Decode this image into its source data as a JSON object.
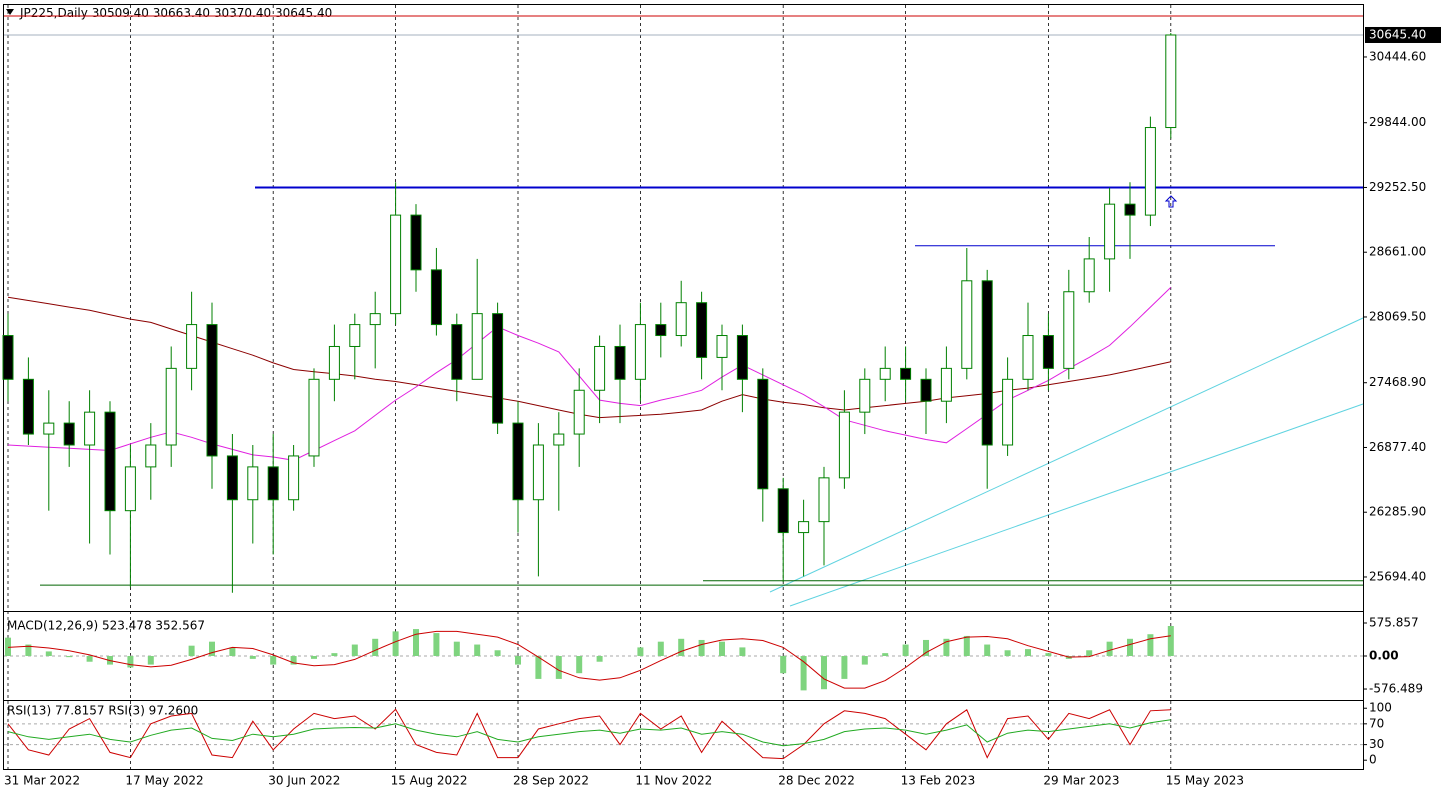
{
  "chart_data": [
    {
      "type": "candlestick",
      "title": "JP225,Daily",
      "header_values": [
        "30509.40",
        "30663.40",
        "30370.40",
        "30645.40"
      ],
      "categories": [
        "31 Mar 2022",
        null,
        null,
        null,
        null,
        null,
        "17 May 2022",
        null,
        null,
        null,
        null,
        null,
        null,
        "30 Jun 2022",
        null,
        null,
        null,
        null,
        null,
        "15 Aug 2022",
        null,
        null,
        null,
        null,
        null,
        "28 Sep 2022",
        null,
        null,
        null,
        null,
        null,
        "11 Nov 2022",
        null,
        null,
        null,
        null,
        null,
        null,
        "28 Dec 2022",
        null,
        null,
        null,
        null,
        null,
        "13 Feb 2023",
        null,
        null,
        null,
        null,
        null,
        null,
        "29 Mar 2023",
        null,
        null,
        null,
        null,
        null,
        "15 May 2023"
      ],
      "open": [
        27900,
        27500,
        27000,
        27100,
        26900,
        27200,
        26300,
        26700,
        26900,
        27600,
        28000,
        26800,
        26400,
        26700,
        26400,
        26800,
        27500,
        27800,
        28000,
        28100,
        29000,
        28500,
        28000,
        27500,
        28100,
        27100,
        26400,
        26900,
        27000,
        27400,
        27800,
        27500,
        28000,
        27900,
        28200,
        27700,
        27900,
        27500,
        26500,
        26100,
        26200,
        26600,
        27200,
        27500,
        27600,
        27500,
        27300,
        27600,
        28400,
        26900,
        27500,
        27900,
        27600,
        28300,
        28600,
        29100,
        29000,
        29800
      ],
      "high": [
        28100,
        27700,
        27400,
        27300,
        27400,
        27300,
        26900,
        27100,
        27800,
        28300,
        28200,
        27000,
        26900,
        27000,
        26900,
        27600,
        28000,
        28100,
        28300,
        29300,
        29100,
        28700,
        28100,
        28600,
        28200,
        27300,
        27100,
        27200,
        27600,
        27900,
        28000,
        28200,
        28200,
        28400,
        28300,
        28000,
        28000,
        27600,
        26600,
        26400,
        26700,
        27400,
        27600,
        27800,
        27800,
        27600,
        27800,
        28700,
        28500,
        27700,
        28200,
        28100,
        28500,
        28800,
        29250,
        29300,
        29900,
        30663.4
      ],
      "low": [
        27300,
        26900,
        26300,
        26700,
        26000,
        25900,
        25600,
        26400,
        26700,
        27400,
        26500,
        25550,
        26000,
        25900,
        26300,
        26700,
        27300,
        27500,
        27600,
        28000,
        28300,
        27900,
        27300,
        27500,
        27000,
        26100,
        25700,
        26300,
        26700,
        27100,
        27100,
        27300,
        27700,
        27800,
        27500,
        27400,
        27200,
        26200,
        25650,
        25700,
        25800,
        26500,
        27000,
        27300,
        27300,
        27000,
        27100,
        27500,
        26500,
        26800,
        27400,
        27400,
        27500,
        28200,
        28300,
        28600,
        28900,
        29700
      ],
      "close": [
        27500,
        27000,
        27100,
        26900,
        27200,
        26300,
        26700,
        26900,
        27600,
        28000,
        26800,
        26400,
        26700,
        26400,
        26800,
        27500,
        27800,
        28000,
        28100,
        29000,
        28500,
        28000,
        27500,
        28100,
        27100,
        26400,
        26900,
        27000,
        27400,
        27800,
        27500,
        28000,
        27900,
        28200,
        27700,
        27900,
        27500,
        26500,
        26100,
        26200,
        26600,
        27200,
        27500,
        27600,
        27500,
        27300,
        27600,
        28400,
        26900,
        27500,
        27900,
        27600,
        28300,
        28600,
        29100,
        29000,
        29800,
        30645.4
      ],
      "up_color": "#ffffff",
      "down_color": "#000000",
      "wick_color": "#008000",
      "ma_lines": [
        {
          "color": "#8b0000",
          "values": [
            28250,
            28220,
            28190,
            28160,
            28130,
            28090,
            28050,
            28020,
            27960,
            27900,
            27840,
            27780,
            27720,
            27650,
            27590,
            27570,
            27550,
            27530,
            27500,
            27480,
            27450,
            27420,
            27390,
            27360,
            27330,
            27300,
            27260,
            27220,
            27180,
            27150,
            27160,
            27170,
            27180,
            27200,
            27220,
            27300,
            27360,
            27320,
            27290,
            27270,
            27240,
            27220,
            27240,
            27260,
            27280,
            27300,
            27330,
            27350,
            27370,
            27400,
            27420,
            27450,
            27480,
            27510,
            27540,
            27580,
            27620,
            27660
          ]
        },
        {
          "color": "#e020e0",
          "values": [
            26900,
            26890,
            26880,
            26870,
            26860,
            26850,
            26910,
            26970,
            27020,
            26970,
            26910,
            26860,
            26810,
            26790,
            26760,
            26850,
            26940,
            27030,
            27170,
            27310,
            27430,
            27560,
            27680,
            27830,
            27980,
            27900,
            27830,
            27750,
            27530,
            27310,
            27280,
            27260,
            27310,
            27350,
            27400,
            27520,
            27630,
            27540,
            27450,
            27360,
            27250,
            27130,
            27080,
            27030,
            26990,
            26950,
            26920,
            27050,
            27180,
            27310,
            27400,
            27490,
            27600,
            27700,
            27810,
            27980,
            28160,
            28340
          ]
        }
      ],
      "levels": [
        {
          "value": 30819,
          "color": "#cc0000"
        },
        {
          "value": 29252.5,
          "color": "#0000cd"
        },
        {
          "value": 28720,
          "color": "#0000cd"
        },
        {
          "value": 25620,
          "color": "#006400"
        },
        {
          "value": 25660,
          "color": "#006400"
        }
      ],
      "last_price": {
        "value": 30645.4,
        "label": "30645.40"
      },
      "ylim": [
        25411,
        30965
      ],
      "yticks": [
        {
          "value": 25694.4,
          "label": "25694.40"
        },
        {
          "value": 26285.9,
          "label": "26285.90"
        },
        {
          "value": 26877.4,
          "label": "26877.40"
        },
        {
          "value": 27468.9,
          "label": "27468.90"
        },
        {
          "value": 28069.5,
          "label": "28069.50"
        },
        {
          "value": 28661,
          "label": "28661.00"
        },
        {
          "value": 29252.5,
          "label": "29252.50"
        },
        {
          "value": 29844,
          "label": "29844.00"
        },
        {
          "value": 30444.6,
          "label": "30444.60"
        }
      ]
    },
    {
      "type": "macd",
      "title": "MACD(12,26,9) 523.478 352.567",
      "histogram": [
        320,
        200,
        80,
        -20,
        -100,
        -150,
        -200,
        -150,
        0,
        180,
        250,
        150,
        -50,
        -150,
        -150,
        -50,
        50,
        200,
        300,
        430,
        470,
        400,
        250,
        200,
        100,
        -150,
        -400,
        -400,
        -300,
        -100,
        0,
        150,
        250,
        300,
        280,
        250,
        150,
        0,
        -300,
        -600,
        -580,
        -400,
        -150,
        50,
        200,
        280,
        300,
        350,
        200,
        100,
        120,
        50,
        -50,
        100,
        250,
        300,
        380,
        523.478
      ],
      "signal": [
        150,
        170,
        140,
        90,
        20,
        -80,
        -150,
        -190,
        -160,
        -60,
        60,
        150,
        130,
        20,
        -120,
        -170,
        -150,
        -60,
        100,
        250,
        380,
        430,
        430,
        380,
        330,
        200,
        -20,
        -250,
        -380,
        -420,
        -380,
        -250,
        -80,
        80,
        200,
        280,
        300,
        270,
        150,
        -100,
        -400,
        -560,
        -560,
        -430,
        -200,
        60,
        250,
        330,
        340,
        300,
        180,
        80,
        -20,
        -10,
        100,
        200,
        300,
        352.567
      ],
      "hist_color": "#7fd47f",
      "signal_color": "#cc0000",
      "ylim": [
        -768,
        733
      ],
      "yticks": [
        575.857,
        {
          "value": 0,
          "label": "0.00"
        },
        -576.489
      ]
    },
    {
      "type": "rsi",
      "title": "RSI(13) 77.8157  RSI(3) 97.2600",
      "series": [
        {
          "color": "#cc0000",
          "values": [
            70,
            20,
            10,
            60,
            80,
            15,
            5,
            70,
            85,
            90,
            10,
            5,
            75,
            20,
            60,
            90,
            80,
            85,
            60,
            98,
            30,
            15,
            10,
            90,
            5,
            5,
            60,
            70,
            80,
            85,
            30,
            90,
            60,
            85,
            15,
            75,
            40,
            5,
            3,
            30,
            70,
            95,
            90,
            80,
            50,
            20,
            70,
            97,
            5,
            80,
            85,
            40,
            90,
            80,
            97,
            30,
            95,
            97.26
          ]
        },
        {
          "color": "#22aa22",
          "values": [
            55,
            45,
            40,
            45,
            50,
            40,
            35,
            48,
            58,
            62,
            42,
            38,
            50,
            45,
            50,
            60,
            62,
            63,
            62,
            70,
            58,
            50,
            45,
            55,
            40,
            35,
            45,
            50,
            55,
            58,
            52,
            60,
            58,
            62,
            50,
            55,
            50,
            35,
            28,
            32,
            40,
            55,
            60,
            62,
            58,
            50,
            58,
            68,
            35,
            52,
            58,
            55,
            60,
            65,
            70,
            62,
            72,
            77.8157
          ]
        }
      ],
      "levels": [
        70,
        30
      ],
      "ylim": [
        -15,
        112
      ],
      "yticks": [
        100,
        70,
        30,
        0
      ]
    }
  ]
}
